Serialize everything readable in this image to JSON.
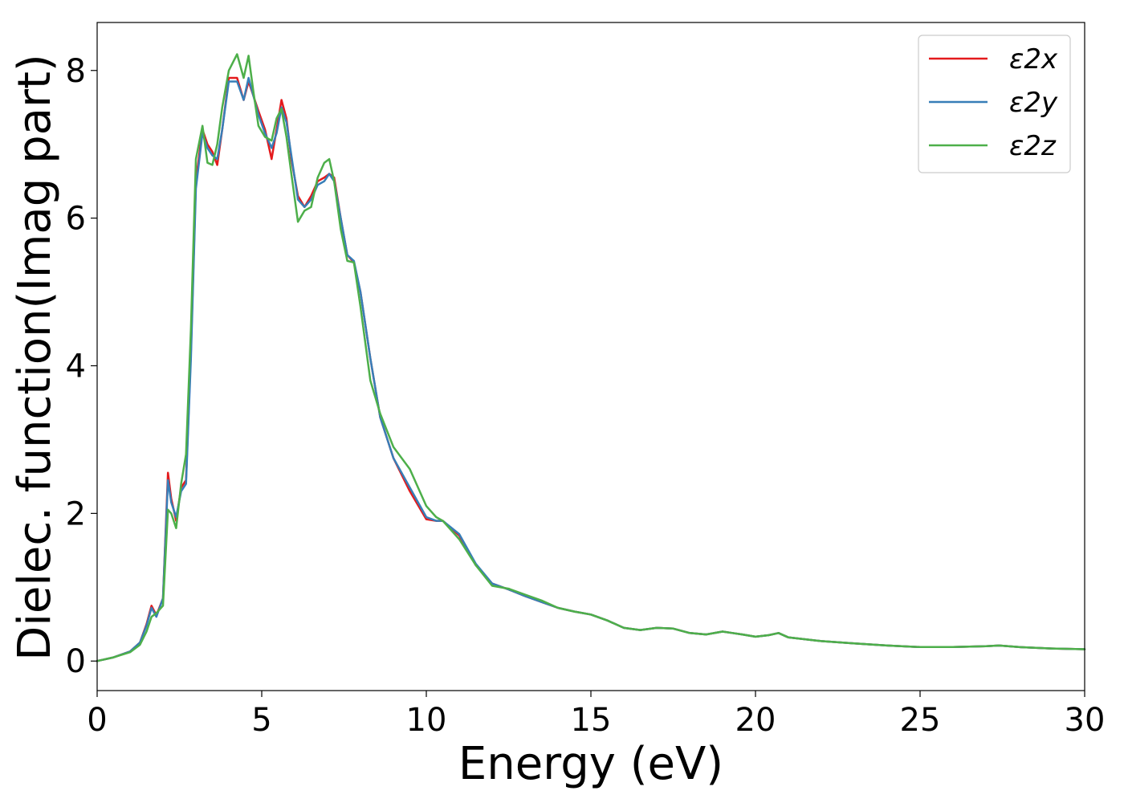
{
  "chart_data": {
    "type": "line",
    "title": "",
    "xlabel": "Energy (eV)",
    "ylabel": "Dielec. function(Imag part)",
    "xlim": [
      0,
      30
    ],
    "ylim": [
      -0.4,
      8.65
    ],
    "xticks": [
      0,
      5,
      10,
      15,
      20,
      25,
      30
    ],
    "yticks": [
      0,
      2,
      4,
      6,
      8
    ],
    "grid": false,
    "legend_position": "top-right",
    "series": [
      {
        "name": "ε2x",
        "color": "#e41a1c",
        "x": [
          0,
          0.5,
          1,
          1.3,
          1.5,
          1.65,
          1.8,
          2,
          2.15,
          2.25,
          2.4,
          2.55,
          2.7,
          2.85,
          3,
          3.2,
          3.35,
          3.5,
          3.65,
          3.8,
          4,
          4.25,
          4.45,
          4.6,
          4.75,
          4.9,
          5.1,
          5.3,
          5.45,
          5.6,
          5.75,
          5.9,
          6.1,
          6.3,
          6.5,
          6.7,
          6.9,
          7.05,
          7.2,
          7.4,
          7.6,
          7.8,
          8,
          8.3,
          8.6,
          9,
          9.5,
          10,
          10.3,
          10.5,
          11,
          11.5,
          12,
          12.5,
          13,
          13.5,
          14,
          14.5,
          15,
          15.5,
          16,
          16.5,
          17,
          17.5,
          18,
          18.5,
          19,
          19.3,
          19.6,
          20,
          20.4,
          20.7,
          21,
          22,
          23,
          24,
          25,
          26,
          27,
          27.4,
          28,
          29,
          30
        ],
        "y": [
          0,
          0.05,
          0.13,
          0.25,
          0.5,
          0.75,
          0.62,
          0.85,
          2.55,
          2.2,
          1.9,
          2.35,
          2.45,
          4.2,
          6.5,
          7.2,
          7.0,
          6.9,
          6.72,
          7.2,
          7.9,
          7.9,
          7.6,
          7.85,
          7.65,
          7.45,
          7.2,
          6.8,
          7.2,
          7.6,
          7.35,
          6.8,
          6.3,
          6.15,
          6.3,
          6.5,
          6.55,
          6.6,
          6.55,
          6.0,
          5.5,
          5.4,
          5.0,
          4.1,
          3.3,
          2.75,
          2.3,
          1.92,
          1.9,
          1.9,
          1.7,
          1.3,
          1.05,
          0.97,
          0.88,
          0.8,
          0.72,
          0.67,
          0.63,
          0.55,
          0.45,
          0.42,
          0.45,
          0.44,
          0.38,
          0.36,
          0.4,
          0.38,
          0.36,
          0.33,
          0.35,
          0.38,
          0.32,
          0.27,
          0.24,
          0.21,
          0.19,
          0.19,
          0.2,
          0.21,
          0.19,
          0.17,
          0.16
        ]
      },
      {
        "name": "ε2y",
        "color": "#377eb8",
        "x": [
          0,
          0.5,
          1,
          1.3,
          1.5,
          1.65,
          1.8,
          2,
          2.15,
          2.25,
          2.4,
          2.55,
          2.7,
          2.85,
          3,
          3.2,
          3.35,
          3.5,
          3.65,
          3.8,
          4,
          4.25,
          4.45,
          4.6,
          4.75,
          4.9,
          5.1,
          5.3,
          5.45,
          5.6,
          5.75,
          5.9,
          6.1,
          6.3,
          6.5,
          6.7,
          6.9,
          7.05,
          7.2,
          7.4,
          7.6,
          7.8,
          8,
          8.3,
          8.6,
          9,
          9.5,
          10,
          10.3,
          10.5,
          11,
          11.5,
          12,
          12.5,
          13,
          13.5,
          14,
          14.5,
          15,
          15.5,
          16,
          16.5,
          17,
          17.5,
          18,
          18.5,
          19,
          19.3,
          19.6,
          20,
          20.4,
          20.7,
          21,
          22,
          23,
          24,
          25,
          26,
          27,
          27.4,
          28,
          29,
          30
        ],
        "y": [
          0,
          0.05,
          0.13,
          0.25,
          0.48,
          0.72,
          0.6,
          0.85,
          2.45,
          2.15,
          1.95,
          2.3,
          2.4,
          4.1,
          6.4,
          7.15,
          6.95,
          6.85,
          6.8,
          7.2,
          7.85,
          7.85,
          7.6,
          7.9,
          7.65,
          7.4,
          7.15,
          6.95,
          7.15,
          7.5,
          7.3,
          6.85,
          6.25,
          6.15,
          6.25,
          6.45,
          6.5,
          6.6,
          6.5,
          6.0,
          5.5,
          5.42,
          5.0,
          4.1,
          3.3,
          2.75,
          2.35,
          1.95,
          1.9,
          1.9,
          1.72,
          1.32,
          1.05,
          0.97,
          0.88,
          0.8,
          0.72,
          0.67,
          0.63,
          0.55,
          0.45,
          0.42,
          0.45,
          0.44,
          0.38,
          0.36,
          0.4,
          0.38,
          0.36,
          0.33,
          0.35,
          0.38,
          0.32,
          0.27,
          0.24,
          0.21,
          0.19,
          0.19,
          0.2,
          0.21,
          0.19,
          0.17,
          0.16
        ]
      },
      {
        "name": "ε2z",
        "color": "#4daf4a",
        "x": [
          0,
          0.5,
          1,
          1.3,
          1.5,
          1.65,
          1.8,
          2,
          2.15,
          2.25,
          2.4,
          2.55,
          2.7,
          2.85,
          3,
          3.2,
          3.35,
          3.5,
          3.65,
          3.8,
          4,
          4.25,
          4.45,
          4.6,
          4.75,
          4.9,
          5.1,
          5.3,
          5.45,
          5.6,
          5.75,
          5.9,
          6.1,
          6.3,
          6.5,
          6.7,
          6.9,
          7.05,
          7.2,
          7.4,
          7.6,
          7.8,
          8,
          8.3,
          8.6,
          9,
          9.5,
          10,
          10.3,
          10.5,
          11,
          11.5,
          12,
          12.5,
          13,
          13.5,
          14,
          14.5,
          15,
          15.5,
          16,
          16.5,
          17,
          17.5,
          18,
          18.5,
          19,
          19.3,
          19.6,
          20,
          20.4,
          20.7,
          21,
          22,
          23,
          24,
          25,
          26,
          27,
          27.4,
          28,
          29,
          30
        ],
        "y": [
          0,
          0.05,
          0.12,
          0.22,
          0.4,
          0.6,
          0.65,
          0.75,
          2.05,
          2.0,
          1.8,
          2.4,
          2.8,
          4.5,
          6.8,
          7.25,
          6.75,
          6.72,
          7.0,
          7.5,
          8.0,
          8.22,
          7.9,
          8.2,
          7.7,
          7.25,
          7.1,
          7.05,
          7.35,
          7.48,
          7.1,
          6.6,
          5.95,
          6.1,
          6.15,
          6.55,
          6.75,
          6.8,
          6.5,
          5.85,
          5.42,
          5.4,
          4.8,
          3.8,
          3.35,
          2.9,
          2.6,
          2.1,
          1.95,
          1.9,
          1.65,
          1.3,
          1.02,
          0.98,
          0.9,
          0.82,
          0.72,
          0.67,
          0.63,
          0.55,
          0.45,
          0.42,
          0.45,
          0.44,
          0.38,
          0.36,
          0.4,
          0.38,
          0.36,
          0.33,
          0.35,
          0.38,
          0.32,
          0.27,
          0.24,
          0.21,
          0.19,
          0.19,
          0.2,
          0.21,
          0.19,
          0.17,
          0.16
        ]
      }
    ]
  }
}
